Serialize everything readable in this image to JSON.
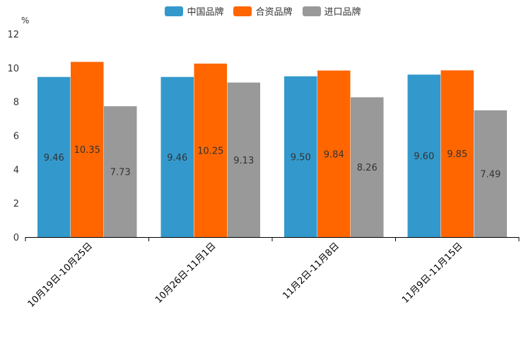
{
  "chart_data": {
    "type": "bar",
    "unit": "%",
    "categories": [
      "10月19日-10月25日",
      "10月26日-11月1日",
      "11月2日-11月8日",
      "11月9日-11月15日"
    ],
    "series": [
      {
        "name": "中国品牌",
        "color": "#3399cc",
        "values": [
          9.46,
          9.46,
          9.5,
          9.6
        ],
        "labels": [
          "9.46",
          "9.46",
          "9.50",
          "9.60"
        ]
      },
      {
        "name": "合资品牌",
        "color": "#ff6600",
        "values": [
          10.35,
          10.25,
          9.84,
          9.85
        ],
        "labels": [
          "10.35",
          "10.25",
          "9.84",
          "9.85"
        ]
      },
      {
        "name": "进口品牌",
        "color": "#999999",
        "values": [
          7.73,
          9.13,
          8.26,
          7.49
        ],
        "labels": [
          "7.73",
          "9.13",
          "8.26",
          "7.49"
        ]
      }
    ],
    "ylim": [
      0,
      12
    ],
    "yticks": [
      "0",
      "2",
      "4",
      "6",
      "8",
      "10",
      "12"
    ],
    "legend_position": "top-center",
    "grid": false
  }
}
